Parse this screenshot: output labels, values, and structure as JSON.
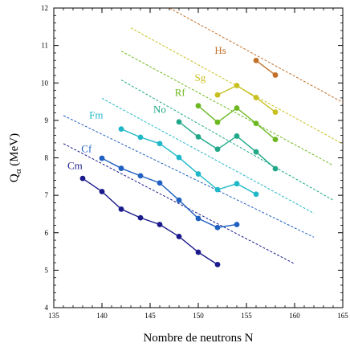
{
  "chart_data": {
    "type": "line",
    "xlabel": "Nombre de neutrons N",
    "ylabel_main": "Q",
    "ylabel_sub": "α",
    "ylabel_unit": " (MeV)",
    "xlim": [
      135,
      165
    ],
    "ylim": [
      4,
      12
    ],
    "xticks": [
      135,
      140,
      145,
      150,
      155,
      160,
      165
    ],
    "yticks": [
      4,
      5,
      6,
      7,
      8,
      9,
      10,
      11,
      12
    ],
    "grid": false,
    "series": [
      {
        "name": "Cm",
        "color": "#1a1a8c",
        "x": [
          138,
          140,
          142,
          144,
          146,
          148,
          150,
          152
        ],
        "y": [
          7.45,
          7.1,
          6.63,
          6.4,
          6.22,
          5.9,
          5.48,
          5.15
        ],
        "trend": [
          [
            136,
            8.38
          ],
          [
            160,
            5.17
          ]
        ],
        "label_pos": [
          137.2,
          7.7
        ]
      },
      {
        "name": "Cf",
        "color": "#2060c0",
        "x": [
          140,
          142,
          144,
          146,
          148,
          150,
          152,
          154
        ],
        "y": [
          7.99,
          7.72,
          7.52,
          7.33,
          6.87,
          6.38,
          6.14,
          6.22
        ],
        "trend": [
          [
            136,
            9.13
          ],
          [
            162,
            5.88
          ]
        ],
        "label_pos": [
          138.4,
          8.15
        ]
      },
      {
        "name": "Fm",
        "color": "#20b8c8",
        "x": [
          142,
          144,
          146,
          148,
          150,
          152,
          154,
          156
        ],
        "y": [
          8.77,
          8.55,
          8.38,
          8.01,
          7.57,
          7.15,
          7.31,
          7.03
        ],
        "trend": [
          [
            140,
            9.59
          ],
          [
            162,
            6.52
          ]
        ],
        "label_pos": [
          139.4,
          9.05
        ]
      },
      {
        "name": "No",
        "color": "#20a888",
        "x": [
          148,
          150,
          152,
          154,
          156,
          158
        ],
        "y": [
          8.96,
          8.56,
          8.23,
          8.58,
          8.16,
          7.71
        ],
        "trend": [
          [
            142,
            10.08
          ],
          [
            164,
            6.87
          ]
        ],
        "label_pos": [
          146.0,
          9.2
        ]
      },
      {
        "name": "Rf",
        "color": "#6cb820",
        "x": [
          150,
          152,
          154,
          156,
          158
        ],
        "y": [
          9.39,
          8.95,
          9.33,
          8.92,
          8.49
        ],
        "trend": [
          [
            142,
            10.85
          ],
          [
            164,
            7.8
          ]
        ],
        "label_pos": [
          148.1,
          9.65
        ]
      },
      {
        "name": "Sg",
        "color": "#c8c020",
        "x": [
          152,
          154,
          156,
          158
        ],
        "y": [
          9.68,
          9.93,
          9.61,
          9.22
        ],
        "trend": [
          [
            143,
            11.47
          ],
          [
            165,
            8.37
          ]
        ],
        "label_pos": [
          150.2,
          10.05
        ]
      },
      {
        "name": "Hs",
        "color": "#c07028",
        "x": [
          156,
          158
        ],
        "y": [
          10.6,
          10.21
        ],
        "trend": [
          [
            147,
            12.0
          ],
          [
            165,
            9.48
          ]
        ],
        "label_pos": [
          152.3,
          10.78
        ]
      }
    ]
  }
}
